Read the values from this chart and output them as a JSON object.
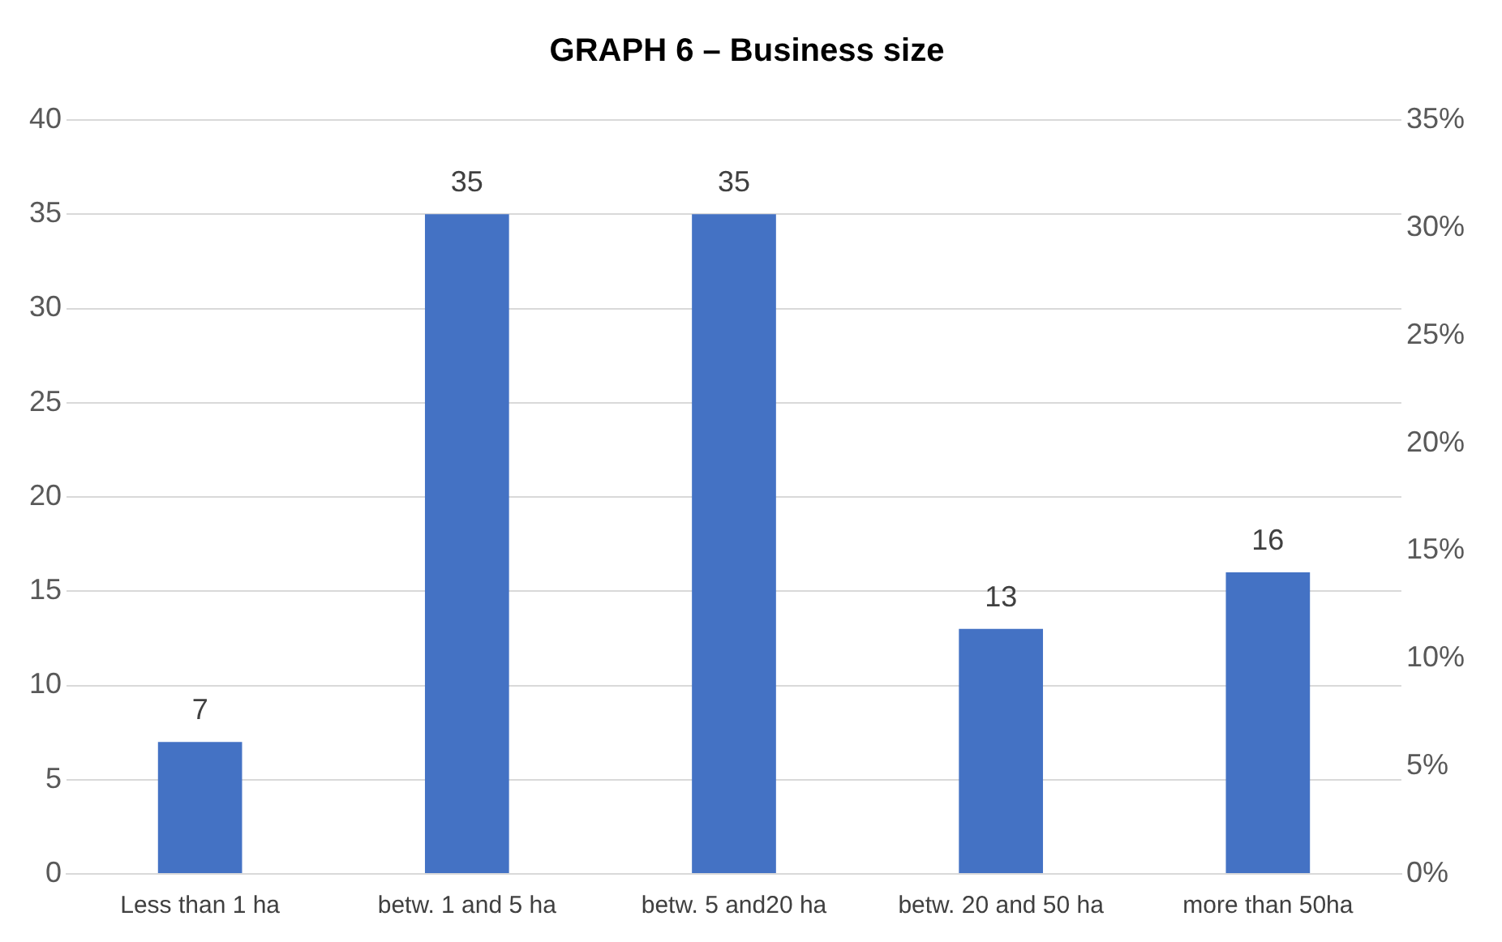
{
  "chart_data": {
    "type": "bar",
    "title": "GRAPH 6 – Business size",
    "categories": [
      "Less than 1 ha",
      "betw. 1 and 5 ha",
      "betw. 5 and20 ha",
      "betw. 20 and 50 ha",
      "more than 50ha"
    ],
    "values": [
      7,
      35,
      35,
      13,
      16
    ],
    "color": "#4472c4",
    "ylim": [
      0,
      40
    ],
    "yticks": [
      0,
      5,
      10,
      15,
      20,
      25,
      30,
      35,
      40
    ],
    "y2lim": [
      0,
      35
    ],
    "y2ticks": [
      {
        "value": 0,
        "label": "0%"
      },
      {
        "value": 5,
        "label": "5%"
      },
      {
        "value": 10,
        "label": "10%"
      },
      {
        "value": 15,
        "label": "15%"
      },
      {
        "value": 20,
        "label": "20%"
      },
      {
        "value": 25,
        "label": "25%"
      },
      {
        "value": 30,
        "label": "30%"
      },
      {
        "value": 35,
        "label": "35%"
      }
    ],
    "grid": "y",
    "data_labels": true,
    "legend": false
  }
}
